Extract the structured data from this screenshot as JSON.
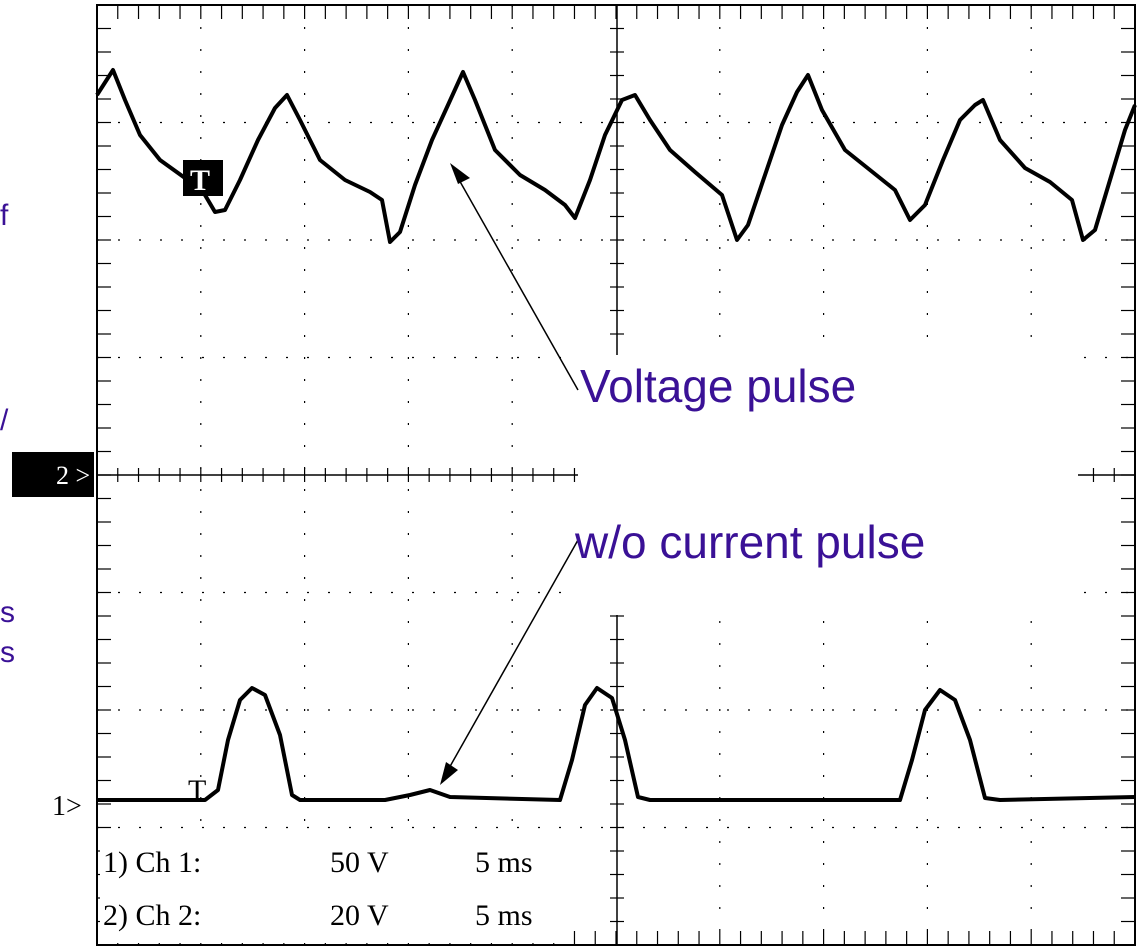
{
  "annotations": {
    "voltage": "Voltage pulse",
    "current": "w/o current pulse"
  },
  "markers": {
    "ch2": "2 >",
    "ch1": "1>",
    "trigger_top": "T",
    "trigger_bottom": "T"
  },
  "settings": [
    {
      "channel": "1) Ch 1:",
      "volts": "50 V",
      "time": "5 ms"
    },
    {
      "channel": "2) Ch 2:",
      "volts": "20 V",
      "time": "5 ms"
    }
  ],
  "left_fragments": [
    "f",
    "/",
    "s",
    "s"
  ]
}
